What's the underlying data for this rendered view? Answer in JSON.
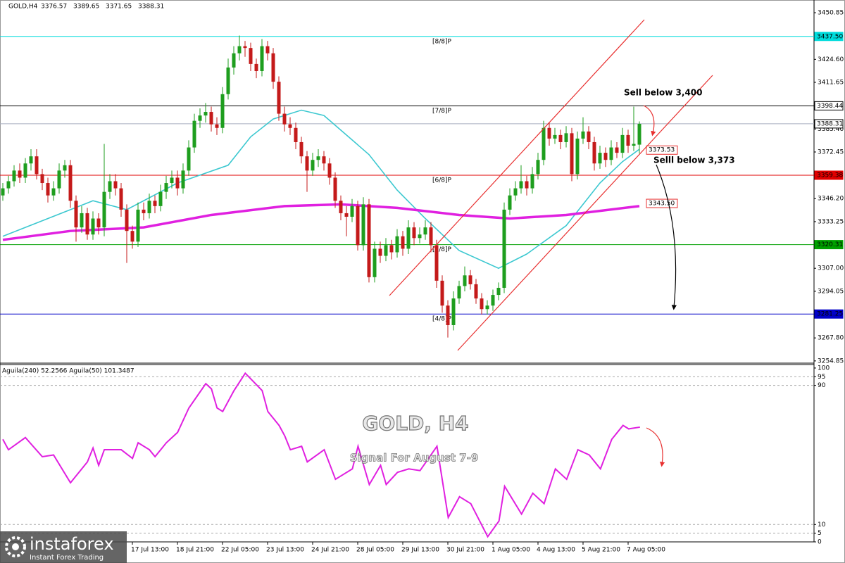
{
  "chart_data": [
    {
      "type": "candlestick",
      "title": "GOLD,H4",
      "up_color": "#1e9e1e",
      "down_color": "#c41a1a",
      "ylim": [
        3254,
        3458
      ],
      "yticks": [
        3450.85,
        {
          "value": 3424.6,
          "label": "3424.60"
        },
        3411.65,
        {
          "value": 3385.4,
          "label": "3385.40"
        },
        3372.45,
        {
          "value": 3346.2,
          "label": "3346.20"
        },
        3333.25,
        {
          "value": 3307,
          "label": "3307.00"
        },
        3294.05,
        {
          "value": 3267.8,
          "label": "3267.80"
        },
        3254.85
      ],
      "categories": [
        null,
        null,
        null,
        null,
        null,
        null,
        null,
        null,
        null,
        null,
        null,
        null,
        null,
        null,
        null,
        null,
        null,
        null,
        null,
        null,
        null,
        null,
        null,
        "17 Jul 13:00",
        null,
        null,
        null,
        null,
        null,
        null,
        null,
        "18 Jul 21:00",
        null,
        null,
        null,
        null,
        null,
        null,
        null,
        "22 Jul 05:00",
        null,
        null,
        null,
        null,
        null,
        null,
        null,
        "23 Jul 13:00",
        null,
        null,
        null,
        null,
        null,
        null,
        null,
        "24 Jul 21:00",
        null,
        null,
        null,
        null,
        null,
        null,
        null,
        "28 Jul 05:00",
        null,
        null,
        null,
        null,
        null,
        null,
        null,
        "29 Jul 13:00",
        null,
        null,
        null,
        null,
        null,
        null,
        null,
        "30 Jul 21:00",
        null,
        null,
        null,
        null,
        null,
        null,
        null,
        "1 Aug 05:00",
        null,
        null,
        null,
        null,
        null,
        null,
        null,
        "4 Aug 13:00",
        null,
        null,
        null,
        null,
        null,
        null,
        null,
        "5 Aug 21:00",
        null,
        null,
        null,
        null,
        null,
        null,
        null,
        "7 Aug 05:00",
        null,
        null
      ],
      "ohlc": [
        [
          3348,
          3355,
          3345,
          3352
        ],
        [
          3352,
          3359,
          3349,
          3356
        ],
        [
          3356,
          3365,
          3353,
          3362
        ],
        [
          3362,
          3366,
          3355,
          3358
        ],
        [
          3358,
          3369,
          3355,
          3366
        ],
        [
          3366,
          3374,
          3362,
          3370
        ],
        [
          3370,
          3374,
          3357,
          3360
        ],
        [
          3360,
          3363,
          3351,
          3355
        ],
        [
          3355,
          3358,
          3344,
          3348
        ],
        [
          3348,
          3356,
          3345,
          3352
        ],
        [
          3352,
          3366,
          3349,
          3362
        ],
        [
          3362,
          3368,
          3358,
          3365
        ],
        [
          3365,
          3368,
          3341,
          3345
        ],
        [
          3345,
          3348,
          3322,
          3330
        ],
        [
          3330,
          3342,
          3327,
          3338
        ],
        [
          3338,
          3341,
          3323,
          3326
        ],
        [
          3326,
          3339,
          3323,
          3335
        ],
        [
          3335,
          3338,
          3326,
          3330
        ],
        [
          3330,
          3377,
          3325,
          3350
        ],
        [
          3350,
          3360,
          3346,
          3356
        ],
        [
          3356,
          3360,
          3348,
          3352
        ],
        [
          3352,
          3355,
          3336,
          3340
        ],
        [
          3340,
          3343,
          3310,
          3328
        ],
        [
          3328,
          3331,
          3318,
          3322
        ],
        [
          3322,
          3344,
          3319,
          3340
        ],
        [
          3340,
          3344,
          3334,
          3338
        ],
        [
          3338,
          3349,
          3335,
          3345
        ],
        [
          3345,
          3348,
          3338,
          3342
        ],
        [
          3342,
          3354,
          3339,
          3350
        ],
        [
          3350,
          3359,
          3346,
          3355
        ],
        [
          3355,
          3362,
          3352,
          3358
        ],
        [
          3358,
          3362,
          3348,
          3352
        ],
        [
          3352,
          3366,
          3349,
          3362
        ],
        [
          3362,
          3379,
          3359,
          3375
        ],
        [
          3375,
          3394,
          3372,
          3390
        ],
        [
          3390,
          3397,
          3386,
          3393
        ],
        [
          3393,
          3400,
          3389,
          3395
        ],
        [
          3395,
          3398,
          3384,
          3388
        ],
        [
          3388,
          3392,
          3382,
          3386
        ],
        [
          3386,
          3409,
          3383,
          3405
        ],
        [
          3405,
          3425,
          3402,
          3420
        ],
        [
          3420,
          3432,
          3416,
          3428
        ],
        [
          3428,
          3438,
          3424,
          3432
        ],
        [
          3432,
          3435,
          3426,
          3431
        ],
        [
          3431,
          3434,
          3418,
          3422
        ],
        [
          3422,
          3425,
          3414,
          3418
        ],
        [
          3418,
          3436,
          3415,
          3432
        ],
        [
          3432,
          3435,
          3424,
          3428
        ],
        [
          3428,
          3431,
          3408,
          3412
        ],
        [
          3412,
          3415,
          3390,
          3394
        ],
        [
          3394,
          3398,
          3384,
          3388
        ],
        [
          3388,
          3392,
          3382,
          3386
        ],
        [
          3386,
          3389,
          3374,
          3378
        ],
        [
          3378,
          3381,
          3366,
          3370
        ],
        [
          3370,
          3373,
          3350,
          3362
        ],
        [
          3362,
          3372,
          3359,
          3368
        ],
        [
          3368,
          3374,
          3364,
          3370
        ],
        [
          3370,
          3373,
          3362,
          3366
        ],
        [
          3366,
          3369,
          3354,
          3358
        ],
        [
          3358,
          3361,
          3341,
          3345
        ],
        [
          3345,
          3348,
          3334,
          3338
        ],
        [
          3338,
          3342,
          3325,
          3336
        ],
        [
          3336,
          3346,
          3333,
          3342
        ],
        [
          3342,
          3345,
          3317,
          3320
        ],
        [
          3320,
          3347,
          3317,
          3343
        ],
        [
          3343,
          3346,
          3299,
          3302
        ],
        [
          3302,
          3322,
          3299,
          3318
        ],
        [
          3318,
          3322,
          3310,
          3314
        ],
        [
          3314,
          3324,
          3311,
          3320
        ],
        [
          3320,
          3323,
          3312,
          3316
        ],
        [
          3316,
          3329,
          3313,
          3325
        ],
        [
          3325,
          3328,
          3314,
          3318
        ],
        [
          3318,
          3334,
          3315,
          3330
        ],
        [
          3330,
          3333,
          3320,
          3324
        ],
        [
          3324,
          3330,
          3321,
          3326
        ],
        [
          3326,
          3334,
          3323,
          3330
        ],
        [
          3330,
          3333,
          3316,
          3320
        ],
        [
          3320,
          3323,
          3296,
          3300
        ],
        [
          3300,
          3303,
          3282,
          3286
        ],
        [
          3286,
          3289,
          3268,
          3275
        ],
        [
          3275,
          3294,
          3272,
          3290
        ],
        [
          3290,
          3300,
          3287,
          3297
        ],
        [
          3297,
          3308,
          3294,
          3303
        ],
        [
          3303,
          3306,
          3295,
          3298
        ],
        [
          3298,
          3301,
          3287,
          3290
        ],
        [
          3290,
          3293,
          3281,
          3284
        ],
        [
          3284,
          3289,
          3281,
          3286
        ],
        [
          3286,
          3295,
          3283,
          3292
        ],
        [
          3292,
          3299,
          3289,
          3296
        ],
        [
          3296,
          3344,
          3293,
          3340
        ],
        [
          3340,
          3352,
          3337,
          3348
        ],
        [
          3348,
          3356,
          3345,
          3352
        ],
        [
          3352,
          3365,
          3349,
          3356
        ],
        [
          3356,
          3359,
          3348,
          3352
        ],
        [
          3352,
          3364,
          3349,
          3360
        ],
        [
          3360,
          3372,
          3357,
          3368
        ],
        [
          3368,
          3390,
          3365,
          3386
        ],
        [
          3386,
          3389,
          3376,
          3380
        ],
        [
          3380,
          3386,
          3377,
          3382
        ],
        [
          3382,
          3385,
          3374,
          3378
        ],
        [
          3378,
          3387,
          3375,
          3383
        ],
        [
          3383,
          3386,
          3356,
          3360
        ],
        [
          3360,
          3384,
          3357,
          3380
        ],
        [
          3380,
          3392,
          3377,
          3384
        ],
        [
          3384,
          3387,
          3374,
          3378
        ],
        [
          3378,
          3381,
          3362,
          3366
        ],
        [
          3366,
          3376,
          3363,
          3372
        ],
        [
          3372,
          3375,
          3364,
          3368
        ],
        [
          3368,
          3379,
          3365,
          3375
        ],
        [
          3375,
          3378,
          3369,
          3372
        ],
        [
          3372,
          3386,
          3369,
          3382
        ],
        [
          3382,
          3385,
          3372,
          3376
        ],
        [
          3376,
          3398,
          3373,
          3377
        ],
        [
          3376.57,
          3389.65,
          3371.65,
          3388.31
        ]
      ],
      "lines": [
        {
          "color": "#3cc8d0",
          "width": 1.6,
          "x": [
            0,
            16,
            22,
            31,
            40,
            44,
            48,
            53,
            57,
            65,
            70,
            75,
            81,
            88,
            93,
            100,
            106,
            110,
            113
          ],
          "values": [
            3325,
            3345,
            3340,
            3355,
            3365,
            3381,
            3391,
            3396,
            3393,
            3371,
            3351,
            3335,
            3317,
            3307,
            3315,
            3331,
            3355,
            3367,
            3374
          ]
        },
        {
          "color": "#e020e0",
          "width": 3.5,
          "x": [
            0,
            12,
            25,
            37,
            50,
            60,
            70,
            81,
            90,
            100,
            113
          ],
          "values": [
            3323,
            3328,
            3330,
            3337,
            3342,
            3343,
            3341,
            3337,
            3335,
            3337,
            3342
          ]
        }
      ],
      "levels": [
        {
          "value": 3437.5,
          "label": "3437.50",
          "tag": "[8/8]P",
          "color": "#00dcdc"
        },
        {
          "value": 3398.44,
          "tag": "[7/8]P",
          "color": "#000000"
        },
        {
          "value": 3359.38,
          "tag": "[6/8]P",
          "color": "#e00000"
        },
        {
          "value": 3320.31,
          "tag": "[5/8]P",
          "color": "#00a000"
        },
        {
          "value": 3281.25,
          "tag": "[4/8]P",
          "color": "#0000c8"
        }
      ],
      "markers": [
        {
          "value": 3373.53,
          "label": "3373.53"
        },
        {
          "value": 3343.5,
          "label": "3343.50"
        }
      ],
      "annotations": [
        "Sell below 3,400",
        "Selll below 3,373"
      ]
    },
    {
      "type": "line",
      "title": "Aguila(240) 52.2566  Aguila(50) 101.3487",
      "color": "#e020e0",
      "ylim": [
        0,
        102
      ],
      "yticks": [
        100,
        95,
        90,
        10,
        5,
        0
      ],
      "levels": [
        95,
        90,
        10,
        5
      ],
      "xlim": [
        -0.5,
        143.875
      ],
      "x": [
        0,
        1,
        4,
        7,
        9,
        12,
        15,
        16,
        17,
        18,
        21,
        23,
        24,
        26,
        27,
        29,
        31,
        33,
        36,
        37,
        38,
        39,
        41,
        43,
        46,
        47,
        49,
        50,
        51,
        53,
        54,
        57,
        59,
        62,
        63,
        65,
        67,
        68,
        70,
        72,
        74,
        77,
        79,
        81,
        83,
        86,
        88,
        89,
        92,
        94,
        96,
        98,
        100,
        102,
        104,
        106,
        108,
        110,
        111,
        113
      ],
      "values": [
        59,
        53,
        60,
        49,
        50,
        34,
        46,
        54,
        44,
        53,
        53,
        48,
        57,
        53,
        49,
        57,
        63,
        77,
        91,
        88,
        77,
        75,
        87,
        97,
        87,
        75,
        67,
        61,
        53,
        55,
        46,
        53,
        36,
        42,
        55,
        33,
        44,
        33,
        40,
        42,
        41,
        55,
        14,
        26,
        22,
        3,
        12,
        32,
        16,
        28,
        22,
        42,
        36,
        53,
        50,
        42,
        59,
        67,
        65,
        66
      ]
    }
  ],
  "watermark": {
    "title": "GOLD, H4",
    "subtitle": "Signal For August 7-9"
  },
  "logo": {
    "name": "instaforex",
    "tagline": "Instant Forex Trading"
  }
}
